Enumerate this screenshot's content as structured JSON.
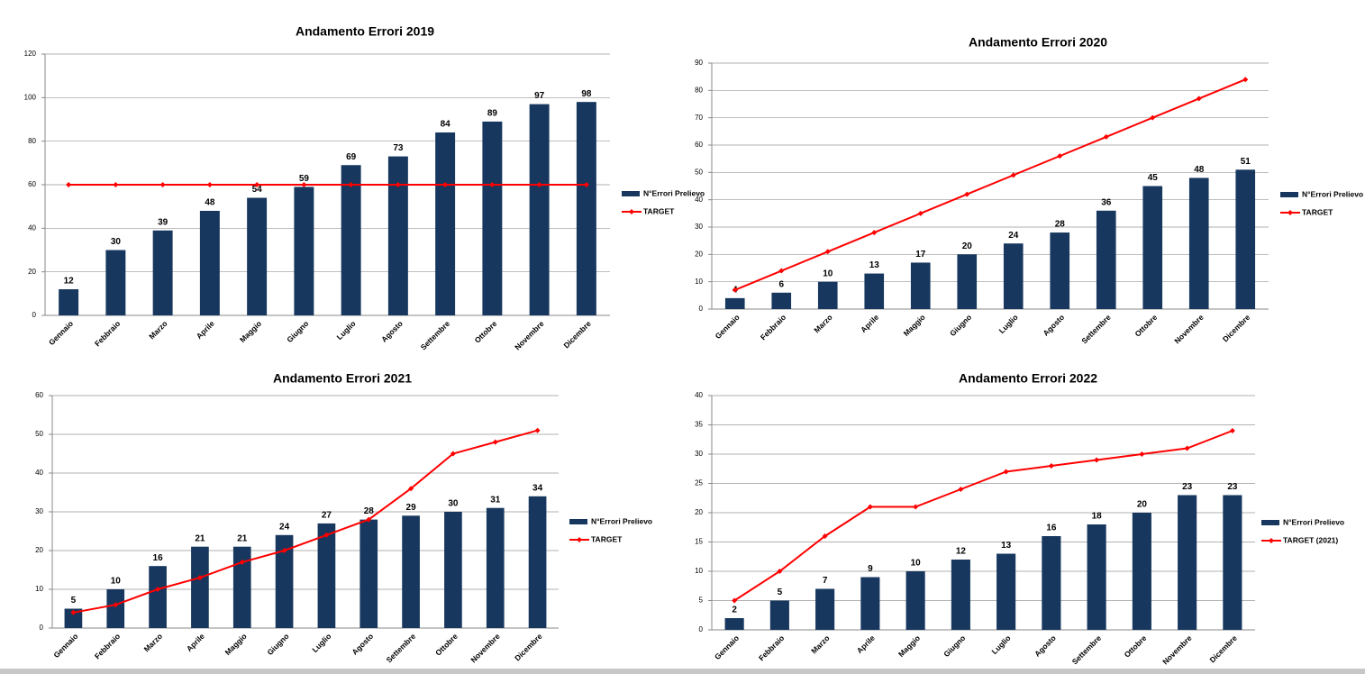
{
  "chart_data": [
    {
      "type": "bar",
      "title": "Andamento Errori  2019",
      "categories": [
        "Gennaio",
        "Febbraio",
        "Marzo",
        "Aprile",
        "Maggio",
        "Giugno",
        "Luglio",
        "Agosto",
        "Settembre",
        "Ottobre",
        "Novembre",
        "Dicembre"
      ],
      "series": [
        {
          "name": "N°Errori Prelievo",
          "type": "bar",
          "color": "#17375e",
          "values": [
            12,
            30,
            39,
            48,
            54,
            59,
            69,
            73,
            84,
            89,
            97,
            98
          ]
        },
        {
          "name": "TARGET",
          "type": "line",
          "color": "#ff0000",
          "values": [
            60,
            60,
            60,
            60,
            60,
            60,
            60,
            60,
            60,
            60,
            60,
            60
          ]
        }
      ],
      "ylim": [
        0,
        120
      ],
      "yticks": [
        0,
        20,
        40,
        60,
        80,
        100,
        120
      ],
      "grid": true,
      "legend": "right"
    },
    {
      "type": "bar",
      "title": "Andamento Errori  2020",
      "categories": [
        "Gennaio",
        "Febbraio",
        "Marzo",
        "Aprile",
        "Maggio",
        "Giugno",
        "Luglio",
        "Agosto",
        "Settembre",
        "Ottobre",
        "Novembre",
        "Dicembre"
      ],
      "series": [
        {
          "name": "N°Errori Prelievo",
          "type": "bar",
          "color": "#17375e",
          "values": [
            4,
            6,
            10,
            13,
            17,
            20,
            24,
            28,
            36,
            45,
            48,
            51
          ]
        },
        {
          "name": "TARGET",
          "type": "line",
          "color": "#ff0000",
          "values": [
            7,
            14,
            21,
            28,
            35,
            42,
            49,
            56,
            63,
            70,
            77,
            84
          ]
        }
      ],
      "ylim": [
        0,
        90
      ],
      "yticks": [
        0,
        10,
        20,
        30,
        40,
        50,
        60,
        70,
        80,
        90
      ],
      "grid": true,
      "legend": "right"
    },
    {
      "type": "bar",
      "title": "Andamento Errori  2021",
      "categories": [
        "Gennaio",
        "Febbraio",
        "Marzo",
        "Aprile",
        "Maggio",
        "Giugno",
        "Luglio",
        "Agosto",
        "Settembre",
        "Ottobre",
        "Novembre",
        "Dicembre"
      ],
      "series": [
        {
          "name": "N°Errori Prelievo",
          "type": "bar",
          "color": "#17375e",
          "values": [
            5,
            10,
            16,
            21,
            21,
            24,
            27,
            28,
            29,
            30,
            31,
            34
          ]
        },
        {
          "name": "TARGET",
          "type": "line",
          "color": "#ff0000",
          "values": [
            4,
            6,
            10,
            13,
            17,
            20,
            24,
            28,
            36,
            45,
            48,
            51
          ]
        }
      ],
      "ylim": [
        0,
        60
      ],
      "yticks": [
        0,
        10,
        20,
        30,
        40,
        50,
        60
      ],
      "grid": true,
      "legend": "right"
    },
    {
      "type": "bar",
      "title": "Andamento Errori  2022",
      "categories": [
        "Gennaio",
        "Febbraio",
        "Marzo",
        "Aprile",
        "Maggio",
        "Giugno",
        "Luglio",
        "Agosto",
        "Settembre",
        "Ottobre",
        "Novembre",
        "Dicembre"
      ],
      "series": [
        {
          "name": "N°Errori Prelievo",
          "type": "bar",
          "color": "#17375e",
          "values": [
            2,
            5,
            7,
            9,
            10,
            12,
            13,
            16,
            18,
            20,
            23,
            23
          ]
        },
        {
          "name": "TARGET (2021)",
          "type": "line",
          "color": "#ff0000",
          "values": [
            5,
            10,
            16,
            21,
            21,
            24,
            27,
            28,
            29,
            30,
            31,
            34
          ]
        }
      ],
      "ylim": [
        0,
        40
      ],
      "yticks": [
        0,
        5,
        10,
        15,
        20,
        25,
        30,
        35,
        40
      ],
      "grid": true,
      "legend": "right"
    }
  ]
}
